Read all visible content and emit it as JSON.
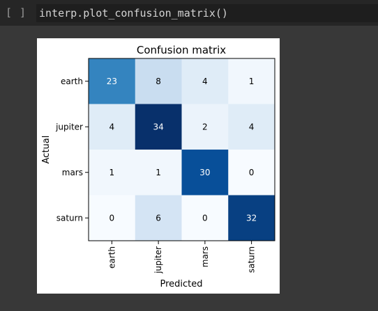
{
  "cell": {
    "prompt": "[ ]",
    "code": "interp.plot_confusion_matrix()"
  },
  "chart_data": {
    "type": "heatmap",
    "title": "Confusion matrix",
    "xlabel": "Predicted",
    "ylabel": "Actual",
    "x_labels": [
      "earth",
      "jupiter",
      "mars",
      "saturn"
    ],
    "y_labels": [
      "earth",
      "jupiter",
      "mars",
      "saturn"
    ],
    "values": [
      [
        23,
        8,
        4,
        1
      ],
      [
        4,
        34,
        2,
        4
      ],
      [
        1,
        1,
        30,
        0
      ],
      [
        0,
        6,
        0,
        32
      ]
    ],
    "colormap": "Blues",
    "vmin": 0,
    "vmax": 34
  }
}
